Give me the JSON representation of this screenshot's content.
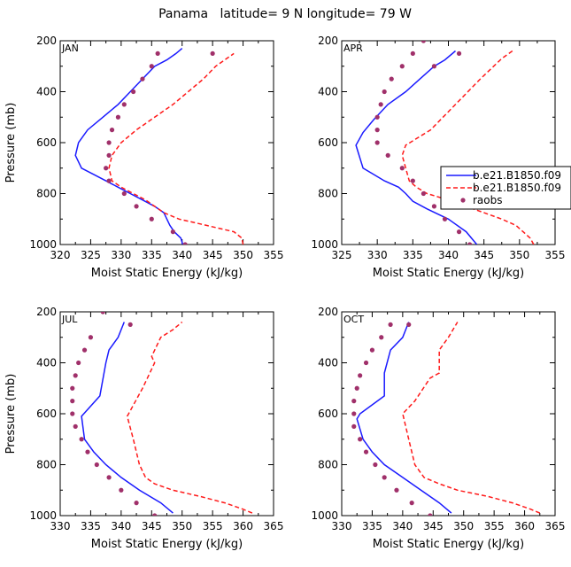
{
  "title": "Panama   latitude= 9 N longitude= 79 W",
  "colors": {
    "model1": "#1a1aff",
    "model2": "#ff1a1a",
    "obs": "#a0306a"
  },
  "legend": [
    "b.e21.B1850.f09",
    "b.e21.B1850.f09",
    "raobs"
  ],
  "chart_data": [
    {
      "type": "line",
      "panel": "JAN",
      "xlabel": "Moist Static Energy (kJ/kg)",
      "ylabel": "Pressure (mb)",
      "xlim": [
        320,
        355
      ],
      "ylim": [
        1000,
        200
      ],
      "xticks": [
        "320",
        "325",
        "330",
        "335",
        "340",
        "345",
        "350",
        "355"
      ],
      "yticks": [
        "200",
        "400",
        "600",
        "800",
        "1000"
      ],
      "series": [
        {
          "style": "model1",
          "x": [
            340.1,
            339.8,
            338.7,
            338.0,
            337.5,
            337.0,
            335.5,
            333.5,
            331.5,
            329.5,
            327.5,
            325.5,
            323.5,
            322.5,
            323.0,
            324.5,
            327.0,
            329.5,
            331.5,
            333.5,
            335.5,
            337.5,
            339.0,
            340.0
          ],
          "y": [
            1000,
            975,
            950,
            925,
            900,
            875,
            850,
            825,
            800,
            775,
            750,
            725,
            700,
            650,
            600,
            550,
            500,
            450,
            400,
            350,
            300,
            275,
            250,
            230
          ]
        },
        {
          "style": "model2",
          "x": [
            350.0,
            349.8,
            348.5,
            344.0,
            339.5,
            337.0,
            335.5,
            334.0,
            332.0,
            330.0,
            328.5,
            328.0,
            328.5,
            330.0,
            332.5,
            335.5,
            338.5,
            341.0,
            343.5,
            345.5,
            347.0,
            348.5
          ],
          "y": [
            1000,
            975,
            950,
            925,
            900,
            875,
            850,
            825,
            800,
            775,
            750,
            700,
            650,
            600,
            550,
            500,
            450,
            400,
            350,
            300,
            275,
            250
          ]
        },
        {
          "style": "obs",
          "x": [
            340.5,
            338.5,
            335.0,
            332.5,
            330.5,
            328.0,
            327.5,
            328.0,
            328.0,
            328.5,
            329.5,
            330.5,
            332.0,
            333.5,
            335.0,
            336.0,
            345.0
          ],
          "y": [
            1000,
            950,
            900,
            850,
            800,
            750,
            700,
            650,
            600,
            550,
            500,
            450,
            400,
            350,
            300,
            250,
            250
          ]
        }
      ]
    },
    {
      "type": "line",
      "panel": "APR",
      "xlabel": "Moist Static Energy (kJ/kg)",
      "ylabel": "",
      "xlim": [
        325,
        355
      ],
      "ylim": [
        1000,
        200
      ],
      "xticks": [
        "325",
        "330",
        "335",
        "340",
        "345",
        "350",
        "355"
      ],
      "yticks": [
        "200",
        "400",
        "600",
        "800",
        "1000"
      ],
      "series": [
        {
          "style": "model1",
          "x": [
            344.0,
            342.5,
            340.0,
            337.0,
            335.0,
            334.0,
            333.0,
            331.0,
            329.5,
            328.0,
            327.0,
            328.0,
            329.5,
            331.5,
            334.0,
            336.0,
            338.0,
            339.5,
            341.0
          ],
          "y": [
            1000,
            950,
            900,
            860,
            830,
            800,
            775,
            750,
            725,
            700,
            610,
            560,
            510,
            450,
            400,
            350,
            300,
            275,
            240
          ]
        },
        {
          "style": "model2",
          "x": [
            352.0,
            351.5,
            350.5,
            349.5,
            347.5,
            345.0,
            342.5,
            340.0,
            337.0,
            335.5,
            334.5,
            334.0,
            333.5,
            334.0,
            337.5,
            341.0,
            344.5,
            347.5,
            349.0
          ],
          "y": [
            1000,
            975,
            950,
            925,
            900,
            875,
            850,
            825,
            800,
            775,
            750,
            700,
            650,
            610,
            550,
            450,
            350,
            270,
            240
          ]
        },
        {
          "style": "obs",
          "x": [
            343.0,
            341.5,
            339.5,
            338.0,
            336.5,
            335.0,
            333.5,
            331.5,
            330.0,
            330.0,
            330.0,
            330.5,
            331.0,
            332.0,
            333.5,
            335.0,
            336.5,
            338.0,
            341.5
          ],
          "y": [
            1000,
            950,
            900,
            850,
            800,
            750,
            700,
            650,
            600,
            550,
            500,
            450,
            400,
            350,
            300,
            250,
            200,
            300,
            250
          ]
        }
      ]
    },
    {
      "type": "line",
      "panel": "JUL",
      "xlabel": "Moist Static Energy (kJ/kg)",
      "ylabel": "Pressure (mb)",
      "xlim": [
        330,
        365
      ],
      "ylim": [
        1000,
        200
      ],
      "xticks": [
        "330",
        "335",
        "340",
        "345",
        "350",
        "355",
        "360",
        "365"
      ],
      "yticks": [
        "200",
        "400",
        "600",
        "800",
        "1000"
      ],
      "series": [
        {
          "style": "model1",
          "x": [
            348.5,
            346.5,
            343.0,
            340.0,
            337.5,
            335.5,
            334.0,
            333.5,
            336.5,
            337.5,
            338.0,
            339.5,
            340.5
          ],
          "y": [
            990,
            950,
            900,
            850,
            800,
            750,
            700,
            610,
            530,
            400,
            350,
            300,
            240
          ]
        },
        {
          "style": "model2",
          "x": [
            361.5,
            360.0,
            357.0,
            353.0,
            348.5,
            345.5,
            344.0,
            343.0,
            342.0,
            341.0,
            343.5,
            345.5,
            345.0,
            346.5,
            348.5,
            350.0
          ],
          "y": [
            990,
            975,
            950,
            925,
            900,
            875,
            850,
            800,
            700,
            610,
            500,
            400,
            375,
            300,
            270,
            240
          ]
        },
        {
          "style": "obs",
          "x": [
            345.5,
            342.5,
            340.0,
            338.0,
            336.0,
            334.5,
            333.5,
            332.5,
            332.0,
            332.0,
            332.0,
            332.5,
            333.0,
            334.0,
            335.0,
            337.0,
            341.5
          ],
          "y": [
            1000,
            950,
            900,
            850,
            800,
            750,
            700,
            650,
            600,
            550,
            500,
            450,
            400,
            350,
            300,
            200,
            250
          ]
        }
      ]
    },
    {
      "type": "line",
      "panel": "OCT",
      "xlabel": "Moist Static Energy (kJ/kg)",
      "ylabel": "",
      "xlim": [
        330,
        365
      ],
      "ylim": [
        1000,
        200
      ],
      "xticks": [
        "330",
        "335",
        "340",
        "345",
        "350",
        "355",
        "360",
        "365"
      ],
      "yticks": [
        "200",
        "400",
        "600",
        "800",
        "1000"
      ],
      "series": [
        {
          "style": "model1",
          "x": [
            348.0,
            346.0,
            343.0,
            340.0,
            337.0,
            335.0,
            333.5,
            332.5,
            333.0,
            337.0,
            337.0,
            338.0,
            340.0,
            341.0
          ],
          "y": [
            990,
            950,
            900,
            850,
            800,
            750,
            700,
            620,
            600,
            530,
            440,
            350,
            300,
            240
          ]
        },
        {
          "style": "model2",
          "x": [
            362.5,
            361.0,
            358.0,
            354.0,
            349.0,
            346.0,
            343.5,
            342.0,
            341.0,
            340.0,
            342.0,
            344.5,
            346.0,
            346.0,
            347.5,
            349.0
          ],
          "y": [
            990,
            975,
            950,
            925,
            900,
            875,
            850,
            800,
            700,
            600,
            550,
            460,
            440,
            350,
            300,
            240
          ]
        },
        {
          "style": "obs",
          "x": [
            344.5,
            341.5,
            339.0,
            337.0,
            335.5,
            334.0,
            333.0,
            332.0,
            332.0,
            332.0,
            332.5,
            333.0,
            334.0,
            335.0,
            336.5,
            338.0,
            341.0
          ],
          "y": [
            1000,
            950,
            900,
            850,
            800,
            750,
            700,
            650,
            600,
            550,
            500,
            450,
            400,
            350,
            300,
            250,
            250
          ]
        }
      ]
    }
  ]
}
